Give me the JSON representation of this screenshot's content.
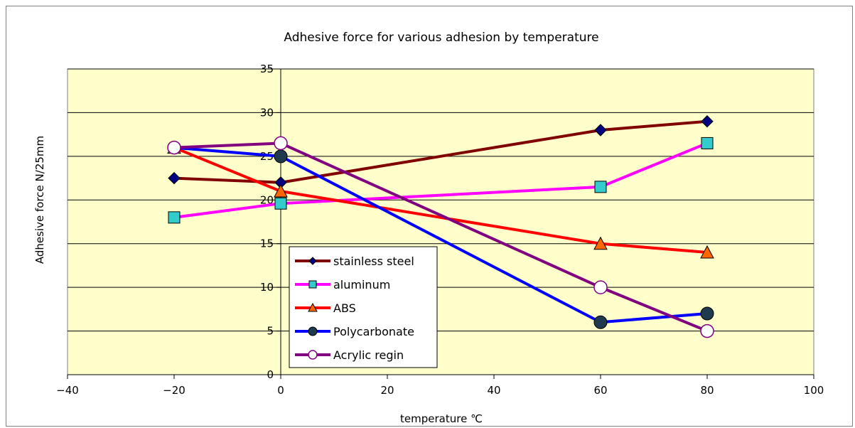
{
  "chart_data": {
    "type": "line",
    "title": "Adhesive force for various adhesion by temperature",
    "xlabel": "temperature ℃",
    "ylabel": "Adhesive force  N/25mm",
    "xlim": [
      -40,
      100
    ],
    "ylim": [
      0,
      35
    ],
    "xticks": [
      -40,
      -20,
      0,
      20,
      40,
      60,
      80,
      100
    ],
    "yticks": [
      0,
      5,
      10,
      15,
      20,
      25,
      30,
      35
    ],
    "grid": "horizontal",
    "plot_background": "#ffffcc",
    "legend_position": "bottom-center",
    "series": [
      {
        "name": "stainless steel",
        "color": "#800000",
        "marker": "diamond",
        "marker_fill": "#000080",
        "x": [
          -20,
          0,
          60,
          80
        ],
        "y": [
          22.5,
          22,
          28,
          29
        ]
      },
      {
        "name": "aluminum",
        "color": "#ff00ff",
        "marker": "square",
        "marker_fill": "#33cccc",
        "x": [
          -20,
          0,
          60,
          80
        ],
        "y": [
          18,
          19.6,
          21.5,
          26.5
        ]
      },
      {
        "name": "ABS",
        "color": "#ff0000",
        "marker": "triangle",
        "marker_fill": "#ff6600",
        "x": [
          -20,
          0,
          60,
          80
        ],
        "y": [
          26,
          21,
          15,
          14
        ]
      },
      {
        "name": "Polycarbonate",
        "color": "#0000ff",
        "marker": "circle",
        "marker_fill": "#1f3a4d",
        "x": [
          -20,
          0,
          60,
          80
        ],
        "y": [
          26,
          25,
          6,
          7
        ]
      },
      {
        "name": "Acrylic regin",
        "color": "#800080",
        "marker": "circle",
        "marker_fill": "#ffffff",
        "x": [
          -20,
          0,
          60,
          80
        ],
        "y": [
          26,
          26.5,
          10,
          5
        ]
      }
    ]
  }
}
